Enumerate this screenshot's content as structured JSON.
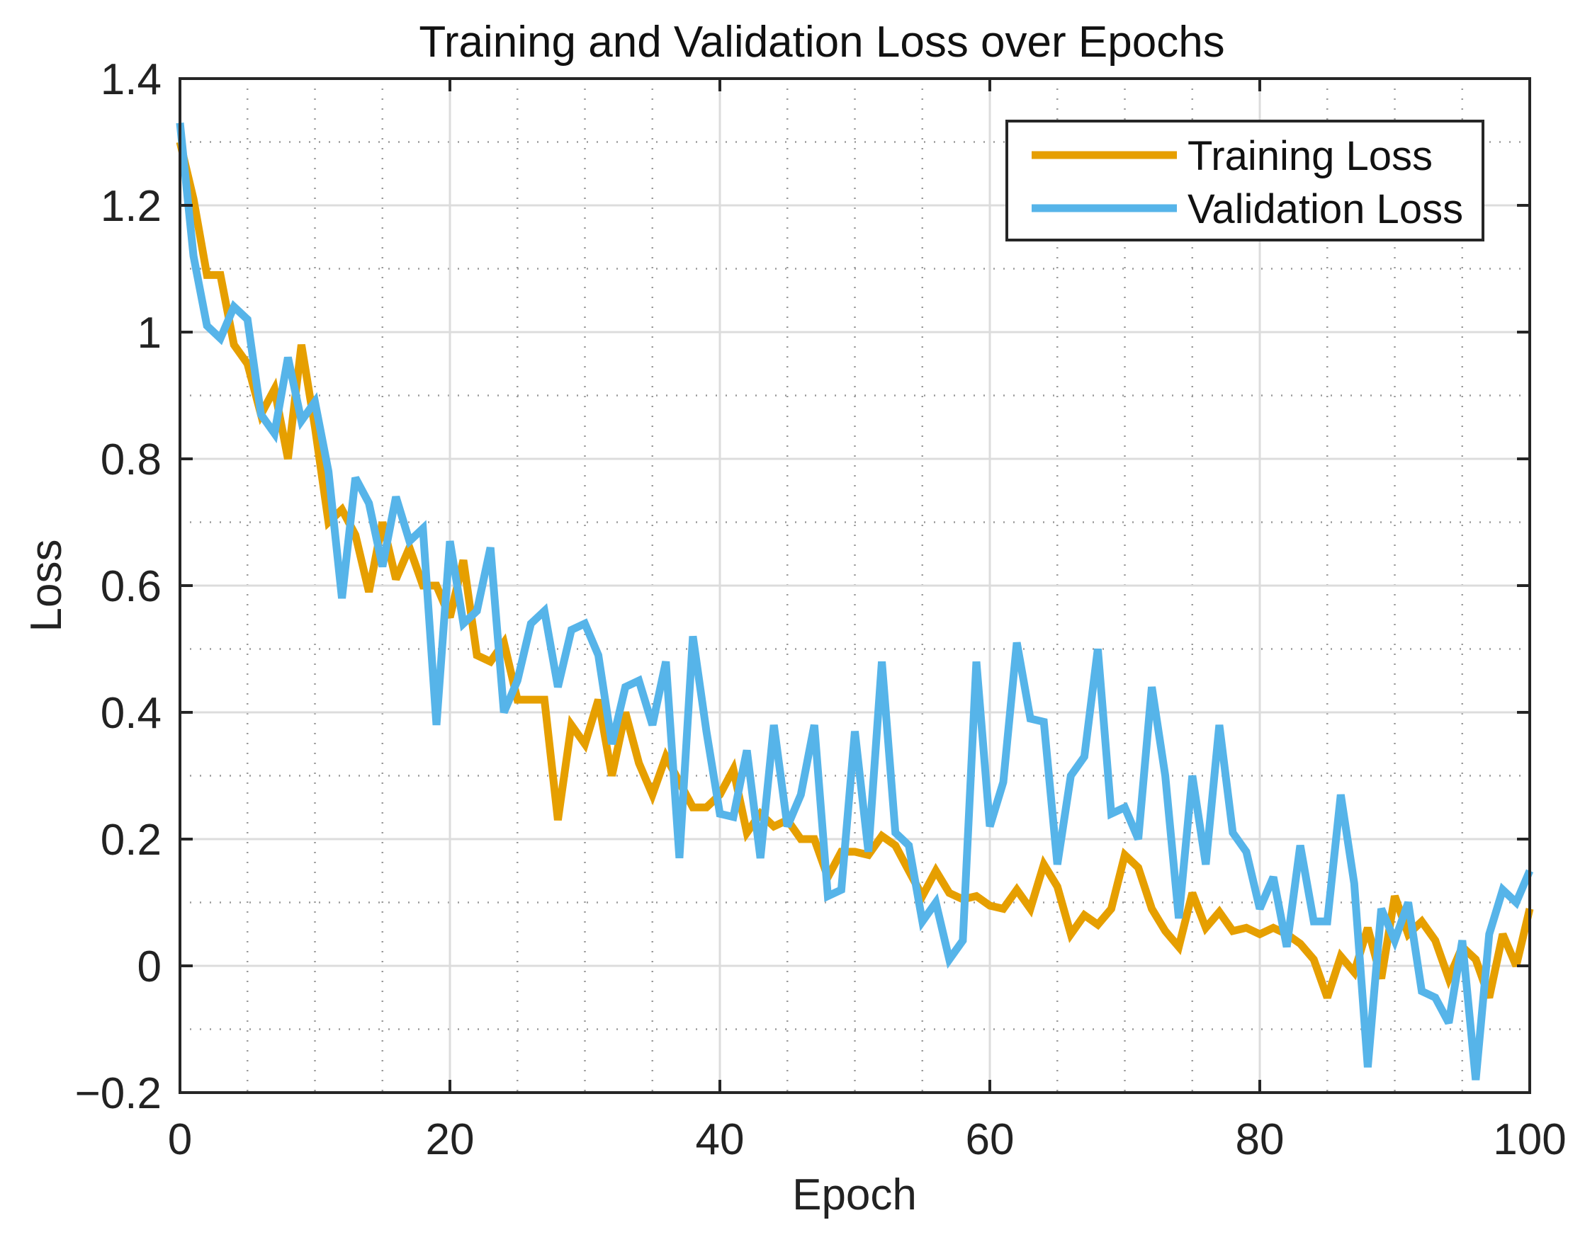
{
  "chart_data": {
    "type": "line",
    "title": "Training and Validation Loss over Epochs",
    "xlabel": "Epoch",
    "ylabel": "Loss",
    "xlim": [
      0,
      100
    ],
    "ylim": [
      -0.2,
      1.4
    ],
    "xticks": [
      0,
      20,
      40,
      60,
      80,
      100
    ],
    "xtick_labels": [
      "0",
      "20",
      "40",
      "60",
      "80",
      "100"
    ],
    "yticks": [
      -0.2,
      0,
      0.2,
      0.4,
      0.6,
      0.8,
      1,
      1.2,
      1.4
    ],
    "ytick_labels": [
      "−0.2",
      "0",
      "0.2",
      "0.4",
      "0.6",
      "0.8",
      "1",
      "1.2",
      "1.4"
    ],
    "grid": true,
    "minor_grid": true,
    "legend_position": "top-right",
    "x": [
      0,
      1,
      2,
      3,
      4,
      5,
      6,
      7,
      8,
      9,
      10,
      11,
      12,
      13,
      14,
      15,
      16,
      17,
      18,
      19,
      20,
      21,
      22,
      23,
      24,
      25,
      26,
      27,
      28,
      29,
      30,
      31,
      32,
      33,
      34,
      35,
      36,
      37,
      38,
      39,
      40,
      41,
      42,
      43,
      44,
      45,
      46,
      47,
      48,
      49,
      50,
      51,
      52,
      53,
      54,
      55,
      56,
      57,
      58,
      59,
      60,
      61,
      62,
      63,
      64,
      65,
      66,
      67,
      68,
      69,
      70,
      71,
      72,
      73,
      74,
      75,
      76,
      77,
      78,
      79,
      80,
      81,
      82,
      83,
      84,
      85,
      86,
      87,
      88,
      89,
      90,
      91,
      92,
      93,
      94,
      95,
      96,
      97,
      98,
      99,
      100
    ],
    "series": [
      {
        "name": "Training Loss",
        "color": "#E69F00",
        "values": [
          1.3,
          1.21,
          1.09,
          1.09,
          0.98,
          0.95,
          0.87,
          0.91,
          0.8,
          0.98,
          0.85,
          0.7,
          0.72,
          0.68,
          0.59,
          0.7,
          0.61,
          0.66,
          0.6,
          0.6,
          0.55,
          0.64,
          0.49,
          0.48,
          0.51,
          0.42,
          0.42,
          0.42,
          0.23,
          0.38,
          0.35,
          0.42,
          0.3,
          0.4,
          0.32,
          0.27,
          0.33,
          0.29,
          0.25,
          0.25,
          0.27,
          0.31,
          0.21,
          0.24,
          0.22,
          0.23,
          0.2,
          0.2,
          0.14,
          0.18,
          0.18,
          0.175,
          0.205,
          0.19,
          0.15,
          0.11,
          0.15,
          0.115,
          0.105,
          0.11,
          0.095,
          0.09,
          0.12,
          0.09,
          0.16,
          0.125,
          0.05,
          0.08,
          0.065,
          0.09,
          0.175,
          0.155,
          0.09,
          0.055,
          0.03,
          0.115,
          0.06,
          0.085,
          0.055,
          0.06,
          0.05,
          0.06,
          0.05,
          0.035,
          0.01,
          -0.05,
          0.015,
          -0.01,
          0.06,
          -0.02,
          0.11,
          0.05,
          0.07,
          0.04,
          -0.02,
          0.03,
          0.01,
          -0.05,
          0.05,
          0.0,
          0.09
        ]
      },
      {
        "name": "Validation Loss",
        "color": "#56B4E9",
        "values": [
          1.33,
          1.12,
          1.01,
          0.99,
          1.04,
          1.02,
          0.87,
          0.84,
          0.96,
          0.86,
          0.89,
          0.78,
          0.58,
          0.77,
          0.73,
          0.63,
          0.74,
          0.67,
          0.69,
          0.38,
          0.67,
          0.54,
          0.56,
          0.66,
          0.4,
          0.45,
          0.54,
          0.56,
          0.44,
          0.53,
          0.54,
          0.49,
          0.35,
          0.44,
          0.45,
          0.38,
          0.48,
          0.17,
          0.52,
          0.37,
          0.24,
          0.235,
          0.34,
          0.17,
          0.38,
          0.22,
          0.27,
          0.38,
          0.11,
          0.12,
          0.37,
          0.18,
          0.48,
          0.21,
          0.19,
          0.07,
          0.1,
          0.01,
          0.04,
          0.48,
          0.22,
          0.29,
          0.51,
          0.39,
          0.385,
          0.16,
          0.3,
          0.33,
          0.5,
          0.24,
          0.25,
          0.2,
          0.44,
          0.3,
          0.075,
          0.3,
          0.16,
          0.38,
          0.21,
          0.18,
          0.09,
          0.14,
          0.03,
          0.19,
          0.07,
          0.07,
          0.27,
          0.13,
          -0.16,
          0.09,
          0.04,
          0.1,
          -0.04,
          -0.05,
          -0.09,
          0.04,
          -0.18,
          0.05,
          0.12,
          0.1,
          0.15
        ]
      }
    ]
  }
}
